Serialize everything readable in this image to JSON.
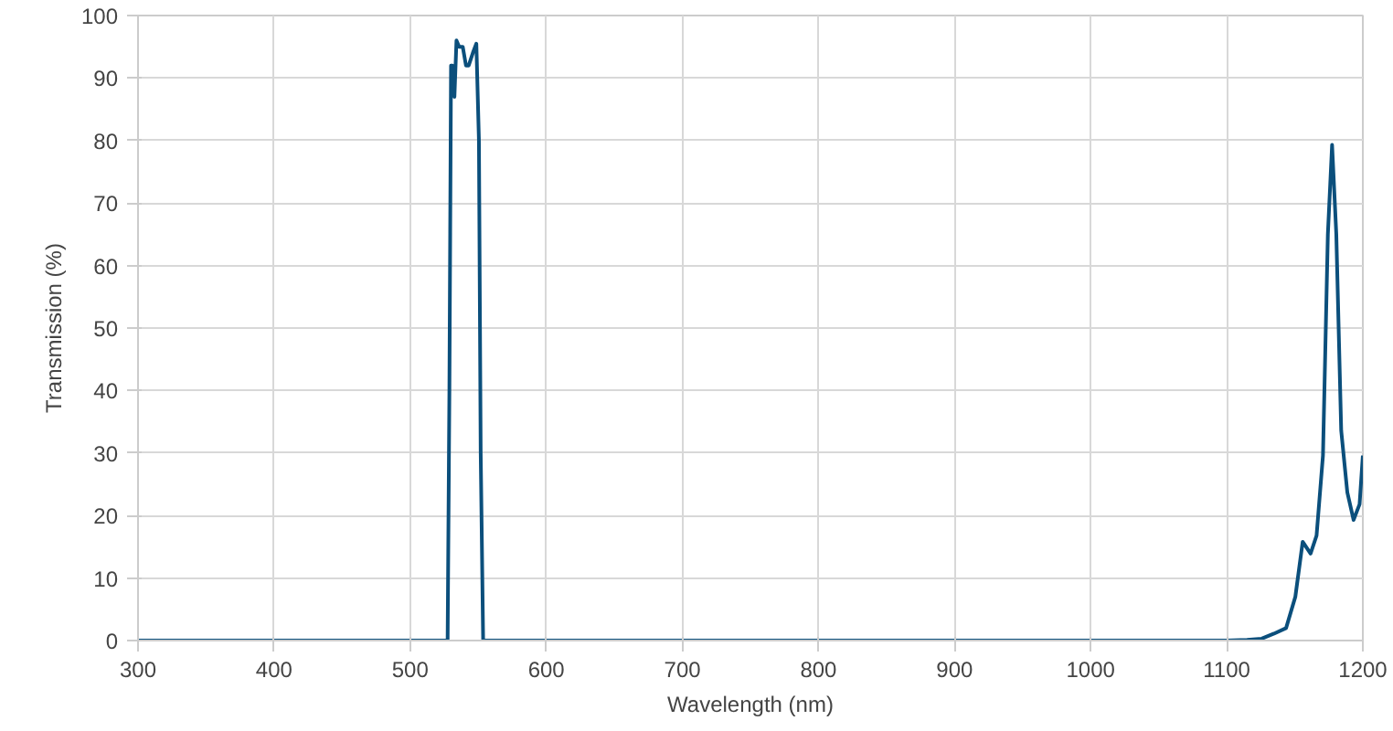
{
  "chart_data": {
    "type": "line",
    "xlabel": "Wavelength (nm)",
    "ylabel": "Transmission (%)",
    "x": [
      300,
      400,
      500,
      527.5,
      528.8,
      530,
      531,
      532.5,
      534,
      536,
      538.6,
      541,
      543,
      546,
      548.6,
      550.5,
      551.8,
      553.6,
      600,
      700,
      800,
      900,
      1000,
      1100,
      1115,
      1125.7,
      1134.7,
      1143.6,
      1150.4,
      1155.8,
      1161.6,
      1166,
      1170.7,
      1174.3,
      1177.4,
      1180.5,
      1184.1,
      1188.6,
      1193.2,
      1197.6,
      1200
    ],
    "series": [
      {
        "color": "#0b4f7c",
        "values": [
          0,
          0,
          0,
          0,
          40,
          92,
          92,
          87,
          96,
          95,
          95,
          92,
          92,
          94,
          95.5,
          80,
          30,
          0,
          0,
          0,
          0,
          0,
          0,
          0,
          0.1,
          0.3,
          1.1,
          2,
          7,
          15.8,
          13.9,
          16.8,
          29.6,
          65,
          79.3,
          65,
          33.6,
          23.7,
          19.3,
          21.8,
          29.6
        ]
      }
    ],
    "xlim": [
      300,
      1200
    ],
    "ylim": [
      0,
      100
    ],
    "xticks": [
      300,
      400,
      500,
      600,
      700,
      800,
      900,
      1000,
      1100,
      1200
    ],
    "yticks": [
      0,
      10,
      20,
      30,
      40,
      50,
      60,
      70,
      80,
      90,
      100
    ],
    "grid": true,
    "line_style": "solid"
  }
}
